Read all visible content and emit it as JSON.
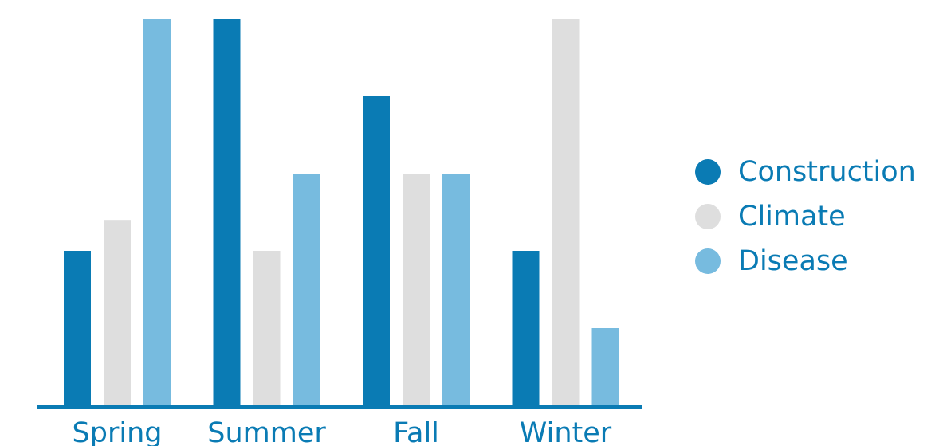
{
  "chart_data": {
    "type": "bar",
    "categories": [
      "Spring",
      "Summer",
      "Fall",
      "Winter"
    ],
    "series": [
      {
        "name": "Construction",
        "color": "#0a7bb4",
        "values": [
          2,
          5,
          4,
          2
        ]
      },
      {
        "name": "Climate",
        "color": "#dedede",
        "values": [
          2.4,
          2,
          3,
          5
        ]
      },
      {
        "name": "Disease",
        "color": "#77bbdf",
        "values": [
          5,
          3,
          3,
          1
        ]
      }
    ],
    "ylim": [
      0,
      5
    ],
    "grid": false,
    "legend_position": "right",
    "axis_color": "#0a7bb4",
    "label_color": "#0a7bb4"
  }
}
